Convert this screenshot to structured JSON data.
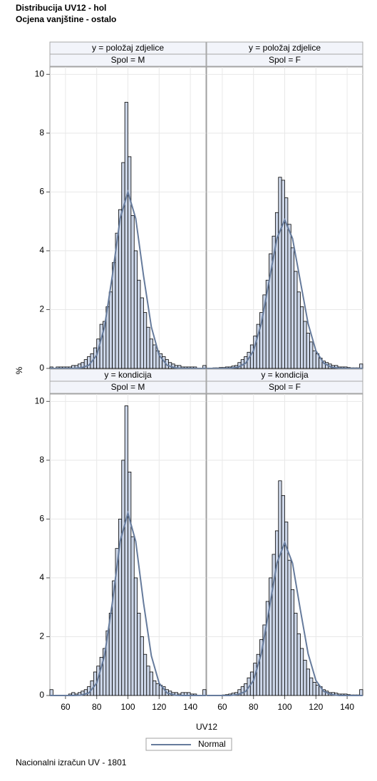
{
  "title": [
    "Distribucija UV12 - hol",
    "Ocjena vanjštine - ostalo"
  ],
  "y_label": "%",
  "x_label": "UV12",
  "legend": {
    "name": "Normal",
    "color": "#667b9c"
  },
  "footnote": "Nacionalni izračun UV - 1801",
  "chart_data": [
    {
      "type": "histogram",
      "header": [
        "y = položaj zdjelice",
        "Spol = M"
      ],
      "color": "#ccd6e8",
      "bins": [
        50,
        52,
        54,
        56,
        58,
        60,
        62,
        64,
        66,
        68,
        70,
        72,
        74,
        76,
        78,
        80,
        82,
        84,
        86,
        88,
        90,
        92,
        94,
        96,
        98,
        100,
        102,
        104,
        106,
        108,
        110,
        112,
        114,
        116,
        118,
        120,
        122,
        124,
        126,
        128,
        130,
        132,
        134,
        136,
        138,
        140,
        142,
        144,
        146,
        148,
        150
      ],
      "values": [
        0.05,
        0,
        0.05,
        0.05,
        0.05,
        0.05,
        0.05,
        0.1,
        0.1,
        0.15,
        0.2,
        0.3,
        0.4,
        0.5,
        0.7,
        1.0,
        1.5,
        1.6,
        2.1,
        2.6,
        3.6,
        4.6,
        5.4,
        7.0,
        9.05,
        7.2,
        5.2,
        4.0,
        3.0,
        2.4,
        1.9,
        1.4,
        1.0,
        0.8,
        0.6,
        0.5,
        0.4,
        0.3,
        0.2,
        0.15,
        0.1,
        0.1,
        0.05,
        0.05,
        0.05,
        0.05,
        0.05,
        0,
        0,
        0.1
      ],
      "curve": {
        "x": [
          50,
          55,
          60,
          65,
          70,
          75,
          80,
          85,
          90,
          95,
          100,
          105,
          110,
          115,
          120,
          125,
          130,
          135,
          140,
          145,
          150
        ],
        "values": [
          0,
          0,
          0,
          0,
          0.02,
          0.11,
          0.45,
          1.41,
          3.15,
          5.1,
          6,
          5.1,
          3.15,
          1.41,
          0.45,
          0.11,
          0.02,
          0,
          0,
          0,
          0
        ]
      },
      "xlim": [
        50,
        150
      ],
      "ylim": [
        0,
        10.25
      ],
      "xticks": [
        60,
        80,
        100,
        120,
        140
      ],
      "yticks": [
        0,
        2,
        4,
        6,
        8,
        10
      ],
      "grid": true
    },
    {
      "type": "histogram",
      "header": [
        "y = položaj zdjelice",
        "Spol = F"
      ],
      "color": "#ccd6e8",
      "bins": [
        50,
        52,
        54,
        56,
        58,
        60,
        62,
        64,
        66,
        68,
        70,
        72,
        74,
        76,
        78,
        80,
        82,
        84,
        86,
        88,
        90,
        92,
        94,
        96,
        98,
        100,
        102,
        104,
        106,
        108,
        110,
        112,
        114,
        116,
        118,
        120,
        122,
        124,
        126,
        128,
        130,
        132,
        134,
        136,
        138,
        140,
        142,
        144,
        146,
        148,
        150
      ],
      "values": [
        0,
        0,
        0.02,
        0.02,
        0.03,
        0.03,
        0.05,
        0.05,
        0.08,
        0.1,
        0.2,
        0.3,
        0.4,
        0.55,
        0.8,
        1.1,
        1.5,
        1.9,
        2.5,
        3.0,
        3.9,
        4.5,
        5.3,
        6.5,
        6.4,
        5.8,
        4.9,
        4.1,
        3.3,
        2.6,
        2.1,
        1.6,
        1.2,
        0.9,
        0.6,
        0.5,
        0.35,
        0.25,
        0.2,
        0.15,
        0.1,
        0.1,
        0.05,
        0.05,
        0.05,
        0.03,
        0.02,
        0.02,
        0.02,
        0.15
      ],
      "curve": {
        "x": [
          50,
          55,
          60,
          65,
          70,
          75,
          80,
          85,
          90,
          95,
          100,
          105,
          110,
          115,
          120,
          125,
          130,
          135,
          140,
          145,
          150
        ],
        "values": [
          0,
          0,
          0,
          0.01,
          0.04,
          0.18,
          0.6,
          1.52,
          2.97,
          4.42,
          5.05,
          4.42,
          2.97,
          1.52,
          0.6,
          0.18,
          0.04,
          0.01,
          0,
          0,
          0
        ]
      },
      "xlim": [
        50,
        150
      ],
      "ylim": [
        0,
        10.25
      ],
      "xticks": [
        60,
        80,
        100,
        120,
        140
      ],
      "yticks": [
        0,
        2,
        4,
        6,
        8,
        10
      ],
      "grid": true
    },
    {
      "type": "histogram",
      "header": [
        "y = kondicija",
        "Spol = M"
      ],
      "color": "#ccd6e8",
      "bins": [
        50,
        52,
        54,
        56,
        58,
        60,
        62,
        64,
        66,
        68,
        70,
        72,
        74,
        76,
        78,
        80,
        82,
        84,
        86,
        88,
        90,
        92,
        94,
        96,
        98,
        100,
        102,
        104,
        106,
        108,
        110,
        112,
        114,
        116,
        118,
        120,
        122,
        124,
        126,
        128,
        130,
        132,
        134,
        136,
        138,
        140,
        142,
        144,
        146,
        148,
        150
      ],
      "values": [
        0.2,
        0,
        0,
        0,
        0,
        0,
        0.05,
        0.1,
        0.05,
        0.1,
        0.15,
        0.2,
        0.3,
        0.5,
        0.8,
        1.0,
        1.3,
        1.6,
        2.2,
        2.8,
        3.9,
        5.0,
        6.0,
        8.0,
        9.85,
        7.6,
        5.4,
        4.0,
        2.8,
        2.0,
        1.4,
        1.0,
        0.8,
        0.5,
        0.4,
        0.35,
        0.3,
        0.2,
        0.15,
        0.1,
        0.1,
        0.05,
        0.1,
        0.1,
        0.1,
        0.05,
        0.05,
        0,
        0,
        0.2
      ],
      "curve": {
        "x": [
          50,
          55,
          60,
          65,
          70,
          75,
          80,
          85,
          90,
          95,
          100,
          105,
          110,
          115,
          120,
          125,
          130,
          135,
          140,
          145,
          150
        ],
        "values": [
          0,
          0,
          0,
          0,
          0.01,
          0.09,
          0.42,
          1.35,
          3.15,
          5.24,
          6.2,
          5.24,
          3.15,
          1.35,
          0.42,
          0.09,
          0.01,
          0,
          0,
          0,
          0
        ]
      },
      "xlim": [
        50,
        150
      ],
      "ylim": [
        0,
        10.25
      ],
      "xticks": [
        60,
        80,
        100,
        120,
        140
      ],
      "yticks": [
        0,
        2,
        4,
        6,
        8,
        10
      ],
      "grid": true
    },
    {
      "type": "histogram",
      "header": [
        "y = kondicija",
        "Spol = F"
      ],
      "color": "#ccd6e8",
      "bins": [
        50,
        52,
        54,
        56,
        58,
        60,
        62,
        64,
        66,
        68,
        70,
        72,
        74,
        76,
        78,
        80,
        82,
        84,
        86,
        88,
        90,
        92,
        94,
        96,
        98,
        100,
        102,
        104,
        106,
        108,
        110,
        112,
        114,
        116,
        118,
        120,
        122,
        124,
        126,
        128,
        130,
        132,
        134,
        136,
        138,
        140,
        142,
        144,
        146,
        148,
        150
      ],
      "values": [
        0,
        0,
        0,
        0,
        0,
        0.02,
        0.03,
        0.05,
        0.08,
        0.1,
        0.2,
        0.3,
        0.4,
        0.6,
        0.8,
        1.1,
        1.4,
        1.9,
        2.4,
        3.2,
        4.0,
        4.8,
        5.6,
        7.3,
        6.8,
        5.9,
        4.6,
        3.6,
        2.8,
        2.1,
        1.6,
        1.2,
        0.9,
        0.6,
        0.45,
        0.35,
        0.3,
        0.2,
        0.15,
        0.1,
        0.1,
        0.08,
        0.05,
        0.05,
        0.05,
        0.03,
        0.02,
        0.02,
        0.02,
        0.2
      ],
      "curve": {
        "x": [
          50,
          55,
          60,
          65,
          70,
          75,
          80,
          85,
          90,
          95,
          100,
          105,
          110,
          115,
          120,
          125,
          130,
          135,
          140,
          145,
          150
        ],
        "values": [
          0,
          0,
          0,
          0,
          0.03,
          0.14,
          0.51,
          1.42,
          2.92,
          4.5,
          5.2,
          4.5,
          2.92,
          1.42,
          0.51,
          0.14,
          0.03,
          0,
          0,
          0,
          0
        ]
      },
      "xlim": [
        50,
        150
      ],
      "ylim": [
        0,
        10.25
      ],
      "xticks": [
        60,
        80,
        100,
        120,
        140
      ],
      "yticks": [
        0,
        2,
        4,
        6,
        8,
        10
      ],
      "grid": true
    }
  ]
}
